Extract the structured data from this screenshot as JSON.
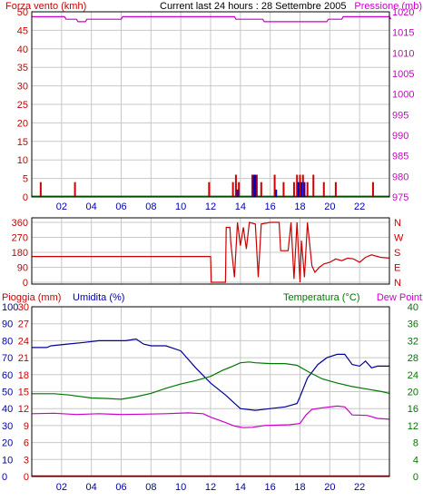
{
  "header": {
    "left_title": "Forza vento (kmh)",
    "center_title": "Current last 24 hours : 28 Settembre 2005",
    "right_title": "Pressione (mb)"
  },
  "colors": {
    "wind": "#cc0000",
    "gust": "#0000cc",
    "pressure": "#cc00cc",
    "direction": "#cc0000",
    "rain": "#cc0000",
    "humidity": "#000099",
    "temperature": "#007700",
    "dewpoint": "#cc00cc",
    "grid": "#c8c8c8",
    "frame": "#000000",
    "label_red": "#cc0000",
    "label_magenta": "#cc00cc",
    "label_blue": "#0000aa",
    "label_green": "#007700",
    "label_black": "#000000"
  },
  "chart_data": [
    {
      "id": "wind_pressure",
      "type": "bar",
      "x_range": [
        0,
        24
      ],
      "x_ticks": [
        "02",
        "04",
        "06",
        "08",
        "10",
        "12",
        "14",
        "16",
        "18",
        "20",
        "22"
      ],
      "y_left": {
        "label": "Forza vento (kmh)",
        "range": [
          0,
          50
        ],
        "ticks": [
          0,
          5,
          10,
          15,
          20,
          25,
          30,
          35,
          40,
          45,
          50
        ]
      },
      "y_right": {
        "label": "Pressione (mb)",
        "range": [
          975,
          1020
        ],
        "ticks": [
          975,
          980,
          985,
          990,
          995,
          1000,
          1005,
          1010,
          1015,
          1020
        ]
      },
      "grid": true,
      "series": [
        {
          "role": "wind",
          "axis": "left",
          "style": "bars",
          "points": [
            [
              0.6,
              4
            ],
            [
              2.9,
              4
            ],
            [
              11.9,
              4
            ],
            [
              13.5,
              4
            ],
            [
              13.7,
              6
            ],
            [
              13.9,
              4
            ],
            [
              14.8,
              6
            ],
            [
              15.1,
              6
            ],
            [
              15.4,
              4
            ],
            [
              16.3,
              6
            ],
            [
              16.9,
              4
            ],
            [
              17.6,
              4
            ],
            [
              17.8,
              6
            ],
            [
              18.0,
              6
            ],
            [
              18.2,
              6
            ],
            [
              18.5,
              4
            ],
            [
              18.9,
              6
            ],
            [
              19.6,
              4
            ],
            [
              20.4,
              4
            ],
            [
              22.9,
              4
            ]
          ]
        },
        {
          "role": "gust",
          "axis": "left",
          "style": "bars",
          "points": [
            [
              13.8,
              2
            ],
            [
              14.9,
              6
            ],
            [
              15.0,
              6
            ],
            [
              16.4,
              2
            ],
            [
              17.9,
              4
            ],
            [
              18.1,
              4
            ],
            [
              18.3,
              4
            ]
          ]
        },
        {
          "role": "pressure",
          "axis": "right",
          "style": "line",
          "points": [
            [
              0,
              1018.8
            ],
            [
              2.2,
              1018.8
            ],
            [
              2.3,
              1018.2
            ],
            [
              3.0,
              1018.2
            ],
            [
              3.1,
              1017.6
            ],
            [
              3.6,
              1017.6
            ],
            [
              3.7,
              1018.2
            ],
            [
              6.0,
              1018.2
            ],
            [
              6.1,
              1018.8
            ],
            [
              13.6,
              1018.8
            ],
            [
              13.7,
              1018.2
            ],
            [
              15.5,
              1018.2
            ],
            [
              15.6,
              1017.6
            ],
            [
              19.8,
              1017.6
            ],
            [
              19.9,
              1018.2
            ],
            [
              20.8,
              1018.2
            ],
            [
              20.9,
              1018.8
            ],
            [
              24,
              1018.8
            ],
            [
              24.1,
              1018.2
            ]
          ]
        }
      ]
    },
    {
      "id": "wind_direction",
      "type": "line",
      "x_range": [
        0,
        24
      ],
      "y_left": {
        "range": [
          0,
          360
        ],
        "ticks": [
          0,
          90,
          180,
          270,
          360
        ]
      },
      "y_right_labels": [
        "N",
        "W",
        "S",
        "E",
        "N"
      ],
      "grid": true,
      "series": [
        {
          "role": "direction",
          "axis": "left",
          "points": [
            [
              0,
              155
            ],
            [
              12.0,
              155
            ],
            [
              12.05,
              0
            ],
            [
              13.0,
              0
            ],
            [
              13.05,
              330
            ],
            [
              13.3,
              330
            ],
            [
              13.35,
              240
            ],
            [
              13.6,
              30
            ],
            [
              13.8,
              360
            ],
            [
              14.0,
              220
            ],
            [
              14.2,
              330
            ],
            [
              14.4,
              200
            ],
            [
              14.6,
              360
            ],
            [
              15.0,
              350
            ],
            [
              15.2,
              30
            ],
            [
              15.4,
              350
            ],
            [
              16.0,
              360
            ],
            [
              16.6,
              360
            ],
            [
              16.7,
              190
            ],
            [
              17.2,
              190
            ],
            [
              17.4,
              360
            ],
            [
              17.6,
              20
            ],
            [
              17.8,
              360
            ],
            [
              18.0,
              0
            ],
            [
              18.1,
              250
            ],
            [
              18.3,
              30
            ],
            [
              18.5,
              360
            ],
            [
              18.8,
              100
            ],
            [
              19.0,
              60
            ],
            [
              19.3,
              90
            ],
            [
              19.6,
              110
            ],
            [
              20.0,
              120
            ],
            [
              20.4,
              140
            ],
            [
              20.8,
              130
            ],
            [
              21.2,
              145
            ],
            [
              21.6,
              140
            ],
            [
              22.0,
              120
            ],
            [
              22.4,
              150
            ],
            [
              22.8,
              165
            ],
            [
              23.4,
              150
            ],
            [
              24,
              145
            ]
          ]
        }
      ]
    },
    {
      "id": "rain_humidity_temp",
      "type": "line",
      "x_range": [
        0,
        24
      ],
      "x_ticks": [
        "02",
        "04",
        "06",
        "08",
        "10",
        "12",
        "14",
        "16",
        "18",
        "20",
        "22"
      ],
      "y_left_rain": {
        "label": "Pioggia (mm)",
        "range": [
          0,
          30
        ],
        "ticks": [
          0,
          3,
          6,
          9,
          12,
          15,
          18,
          21,
          24,
          27,
          30
        ]
      },
      "y_left_humidity": {
        "label": "Umidita (%)",
        "range": [
          0,
          100
        ],
        "ticks": [
          0,
          10,
          20,
          30,
          40,
          50,
          60,
          70,
          80,
          90,
          100
        ]
      },
      "y_right": {
        "label": "Temperatura (°C)",
        "range": [
          0,
          40
        ],
        "ticks": [
          0,
          4,
          8,
          12,
          16,
          20,
          24,
          28,
          32,
          36,
          40
        ]
      },
      "right_title": "Dew Point",
      "grid": true,
      "series": [
        {
          "role": "rain",
          "axis": "rain",
          "points": [
            [
              0,
              0.1
            ],
            [
              24,
              0.1
            ]
          ]
        },
        {
          "role": "humidity",
          "axis": "humidity",
          "points": [
            [
              0,
              76
            ],
            [
              1.0,
              76
            ],
            [
              1.3,
              77
            ],
            [
              2.4,
              78
            ],
            [
              3.5,
              79
            ],
            [
              4.5,
              80
            ],
            [
              5.5,
              80
            ],
            [
              6.3,
              80
            ],
            [
              7.0,
              81
            ],
            [
              7.5,
              78
            ],
            [
              8.0,
              77
            ],
            [
              9.0,
              77
            ],
            [
              10.0,
              74
            ],
            [
              11.0,
              64
            ],
            [
              12.0,
              55
            ],
            [
              13.0,
              48
            ],
            [
              14.0,
              40
            ],
            [
              15.0,
              39
            ],
            [
              16.0,
              40
            ],
            [
              17.0,
              41
            ],
            [
              17.8,
              43
            ],
            [
              18.0,
              47
            ],
            [
              18.5,
              58
            ],
            [
              19.2,
              66
            ],
            [
              19.8,
              70
            ],
            [
              20.5,
              72
            ],
            [
              21.0,
              72
            ],
            [
              21.5,
              66
            ],
            [
              22.0,
              65
            ],
            [
              22.4,
              68
            ],
            [
              22.8,
              64
            ],
            [
              23.2,
              65
            ],
            [
              24,
              65
            ]
          ]
        },
        {
          "role": "temperature",
          "axis": "right",
          "points": [
            [
              0,
              19.5
            ],
            [
              1.5,
              19.5
            ],
            [
              2.5,
              19.2
            ],
            [
              4.0,
              18.5
            ],
            [
              5.0,
              18.4
            ],
            [
              6.0,
              18.2
            ],
            [
              7.0,
              18.8
            ],
            [
              8.0,
              19.6
            ],
            [
              9.0,
              20.8
            ],
            [
              10.0,
              21.8
            ],
            [
              11.0,
              22.6
            ],
            [
              12.0,
              23.6
            ],
            [
              12.8,
              25.0
            ],
            [
              13.5,
              26.0
            ],
            [
              14.0,
              26.8
            ],
            [
              14.6,
              27.0
            ],
            [
              15.0,
              26.8
            ],
            [
              16.0,
              26.6
            ],
            [
              17.0,
              26.6
            ],
            [
              17.8,
              26.2
            ],
            [
              18.6,
              24.6
            ],
            [
              19.5,
              23.0
            ],
            [
              20.5,
              22.0
            ],
            [
              21.5,
              21.2
            ],
            [
              22.5,
              20.6
            ],
            [
              23.5,
              20.0
            ],
            [
              24,
              19.6
            ]
          ]
        },
        {
          "role": "dewpoint",
          "axis": "right",
          "points": [
            [
              0,
              14.8
            ],
            [
              1.5,
              14.9
            ],
            [
              3.0,
              14.6
            ],
            [
              4.5,
              14.8
            ],
            [
              6.0,
              14.6
            ],
            [
              7.5,
              14.7
            ],
            [
              9.0,
              14.8
            ],
            [
              10.5,
              15.0
            ],
            [
              11.5,
              14.8
            ],
            [
              12.0,
              14.0
            ],
            [
              13.0,
              12.7
            ],
            [
              13.6,
              11.9
            ],
            [
              14.2,
              11.5
            ],
            [
              14.8,
              11.6
            ],
            [
              15.6,
              12.0
            ],
            [
              16.5,
              12.1
            ],
            [
              17.3,
              12.2
            ],
            [
              18.0,
              12.5
            ],
            [
              18.4,
              14.5
            ],
            [
              18.8,
              15.8
            ],
            [
              19.5,
              16.2
            ],
            [
              20.5,
              16.6
            ],
            [
              21.0,
              16.4
            ],
            [
              21.5,
              14.5
            ],
            [
              22.5,
              14.4
            ],
            [
              23.2,
              13.7
            ],
            [
              24,
              13.5
            ]
          ]
        }
      ]
    }
  ]
}
